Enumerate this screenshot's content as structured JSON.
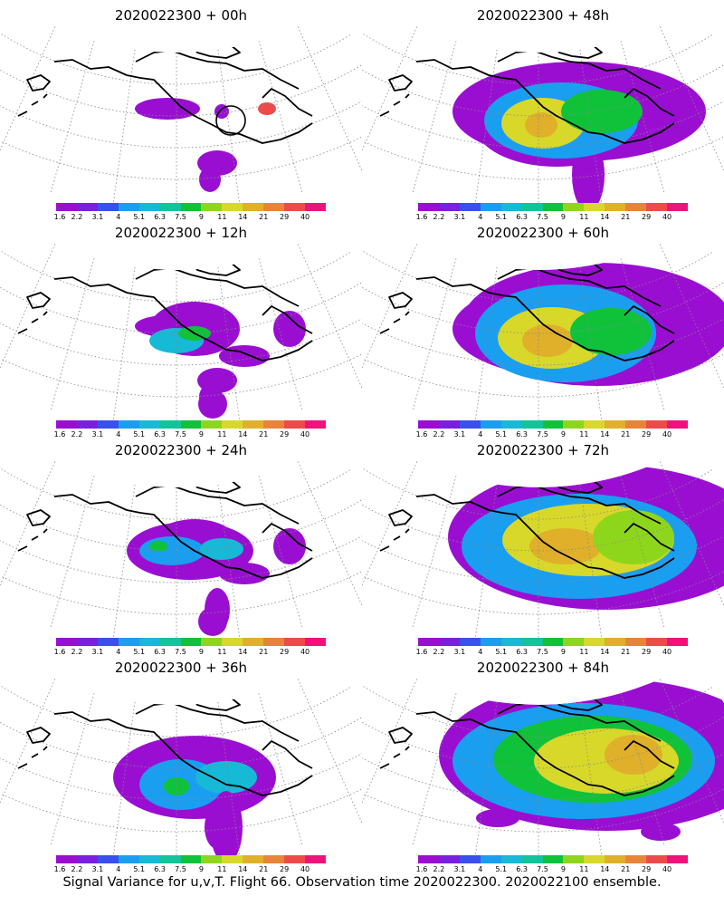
{
  "caption": "Signal Variance for u,v,T. Flight 66. Observation time 2020022300. 2020022100 ensemble.",
  "colorbar": {
    "labels": [
      "1.6",
      "2.2",
      "3.1",
      "4",
      "5.1",
      "6.3",
      "7.5",
      "9",
      "11",
      "14",
      "21",
      "29",
      "40"
    ],
    "colors": [
      "#9a0ed2",
      "#7a1fe0",
      "#3a4ff0",
      "#1a9ef0",
      "#16b9d6",
      "#10c59a",
      "#10c23a",
      "#8ed61c",
      "#d8d82a",
      "#e0b02a",
      "#e8843a",
      "#ef4a4a",
      "#f0127a"
    ]
  },
  "panels": [
    {
      "title": "2020022300 + 00h",
      "level": 0,
      "circle": true
    },
    {
      "title": "2020022300 + 48h",
      "level": 4,
      "circle": false
    },
    {
      "title": "2020022300 + 12h",
      "level": 1,
      "circle": false
    },
    {
      "title": "2020022300 + 60h",
      "level": 5,
      "circle": false
    },
    {
      "title": "2020022300 + 24h",
      "level": 2,
      "circle": false
    },
    {
      "title": "2020022300 + 72h",
      "level": 6,
      "circle": false
    },
    {
      "title": "2020022300 + 36h",
      "level": 3,
      "circle": false
    },
    {
      "title": "2020022300 + 84h",
      "level": 7,
      "circle": false
    }
  ]
}
